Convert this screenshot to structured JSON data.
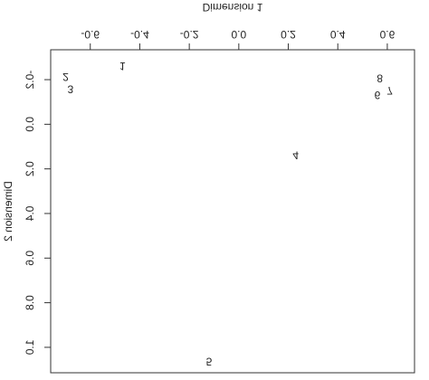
{
  "chart_data": {
    "type": "scatter",
    "xlabel": "Dimension 1",
    "ylabel": "Dimension 2",
    "labels": [
      "1",
      "2",
      "3",
      "4",
      "5",
      "6",
      "7",
      "8"
    ],
    "x": [
      -0.47,
      -0.7,
      -0.68,
      0.23,
      -0.12,
      0.56,
      0.61,
      0.57
    ],
    "y": [
      -0.265,
      -0.215,
      -0.16,
      0.135,
      1.06,
      -0.135,
      -0.155,
      -0.21
    ],
    "xlim": [
      -0.76,
      0.71
    ],
    "ylim": [
      -0.334,
      1.114
    ],
    "xticks": [
      -0.6,
      -0.4,
      -0.2,
      {
        "value": 0,
        "label": "0.0"
      },
      0.2,
      0.4,
      0.6
    ],
    "yticks": [
      -0.2,
      {
        "value": 0,
        "label": "0.0"
      },
      0.2,
      0.4,
      0.6,
      0.8,
      {
        "value": 1,
        "label": "1.0"
      }
    ],
    "flipped_vertically": true
  }
}
